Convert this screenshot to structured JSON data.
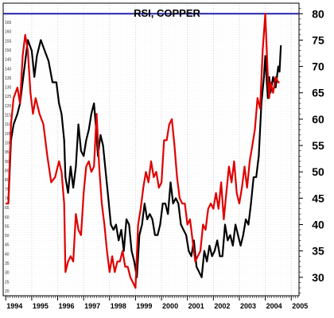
{
  "chart_data": {
    "type": "line",
    "title": "RSI, COPPER",
    "xlabel": "",
    "ylabel": "",
    "xlim": [
      1993.9,
      2005.3
    ],
    "ylim": [
      26.5,
      82
    ],
    "x_ticks": [
      "1994",
      "1995",
      "1996",
      "1997",
      "1998",
      "1999",
      "2000",
      "2001",
      "2002",
      "2003",
      "2004",
      "2005"
    ],
    "y_ticks": [
      30,
      35,
      40,
      45,
      50,
      55,
      60,
      65,
      70,
      75,
      80
    ],
    "left_tick_labels": [
      "20",
      "25",
      "30",
      "35",
      "40",
      "45",
      "50",
      "55",
      "60",
      "65",
      "70",
      "75",
      "80",
      "85",
      "90",
      "95",
      "100",
      "105",
      "110",
      "115",
      "120",
      "125",
      "130",
      "135",
      "140",
      "145",
      "150",
      "155",
      "160",
      "165"
    ],
    "reference_line": {
      "y": 80,
      "color": "#2222aa"
    },
    "grid": true,
    "series": [
      {
        "color": "#000000",
        "x": [
          1994.0,
          1994.1,
          1994.2,
          1994.3,
          1994.45,
          1994.55,
          1994.7,
          1994.85,
          1995.0,
          1995.1,
          1995.2,
          1995.35,
          1995.5,
          1995.65,
          1995.8,
          1995.95,
          1996.05,
          1996.15,
          1996.25,
          1996.3,
          1996.4,
          1996.5,
          1996.6,
          1996.7,
          1996.8,
          1996.9,
          1997.0,
          1997.1,
          1997.2,
          1997.3,
          1997.4,
          1997.5,
          1997.55,
          1997.65,
          1997.75,
          1997.85,
          1997.95,
          1998.05,
          1998.15,
          1998.25,
          1998.35,
          1998.45,
          1998.55,
          1998.65,
          1998.75,
          1998.85,
          1998.95,
          1999.05,
          1999.15,
          1999.25,
          1999.35,
          1999.45,
          1999.55,
          1999.65,
          1999.75,
          1999.85,
          1999.95,
          2000.05,
          2000.15,
          2000.25,
          2000.35,
          2000.45,
          2000.55,
          2000.65,
          2000.75,
          2000.85,
          2000.95,
          2001.05,
          2001.15,
          2001.25,
          2001.35,
          2001.45,
          2001.55,
          2001.65,
          2001.75,
          2001.85,
          2001.95,
          2002.05,
          2002.15,
          2002.25,
          2002.35,
          2002.45,
          2002.55,
          2002.65,
          2002.75,
          2002.85,
          2002.95,
          2003.05,
          2003.15,
          2003.25,
          2003.35,
          2003.45,
          2003.55,
          2003.65,
          2003.75,
          2003.85,
          2003.95,
          2004.0,
          2004.05,
          2004.1,
          2004.15,
          2004.2,
          2004.3,
          2004.4,
          2004.5,
          2004.55,
          2004.6
        ],
        "y": [
          44,
          44,
          56,
          59,
          61,
          63,
          69,
          75,
          73,
          68,
          72,
          75,
          73,
          71,
          67,
          67,
          63,
          61,
          56,
          49,
          46,
          51,
          47,
          51,
          59,
          54,
          53,
          56,
          58,
          61,
          63,
          57,
          53,
          57,
          55,
          50,
          45,
          40,
          39,
          40,
          37,
          39,
          35,
          41,
          40,
          35,
          33,
          30,
          38,
          40,
          44,
          41,
          42,
          41,
          38,
          38,
          40,
          44,
          44,
          42,
          48,
          44,
          45,
          44,
          40,
          39,
          38,
          35,
          34,
          37,
          32,
          31,
          30,
          35,
          33,
          36,
          34,
          35,
          37,
          34,
          34,
          40,
          37,
          38,
          36,
          40,
          38,
          36,
          38,
          41,
          40,
          44,
          49,
          49,
          53,
          63,
          68,
          72,
          68,
          64,
          68,
          65,
          68,
          66,
          70,
          69,
          74
        ]
      },
      {
        "color": "#e00000",
        "x": [
          1994.0,
          1994.1,
          1994.2,
          1994.3,
          1994.45,
          1994.55,
          1994.65,
          1994.75,
          1994.85,
          1994.95,
          1995.05,
          1995.15,
          1995.3,
          1995.45,
          1995.6,
          1995.75,
          1995.9,
          1996.05,
          1996.15,
          1996.25,
          1996.3,
          1996.4,
          1996.5,
          1996.6,
          1996.7,
          1996.8,
          1996.9,
          1997.0,
          1997.1,
          1997.2,
          1997.3,
          1997.4,
          1997.5,
          1997.6,
          1997.7,
          1997.8,
          1997.9,
          1998.0,
          1998.1,
          1998.2,
          1998.3,
          1998.4,
          1998.5,
          1998.6,
          1998.7,
          1998.8,
          1998.9,
          1999.0,
          1999.1,
          1999.2,
          1999.3,
          1999.4,
          1999.5,
          1999.6,
          1999.7,
          1999.8,
          1999.9,
          2000.0,
          2000.1,
          2000.2,
          2000.3,
          2000.4,
          2000.5,
          2000.6,
          2000.7,
          2000.8,
          2000.9,
          2001.0,
          2001.1,
          2001.2,
          2001.3,
          2001.4,
          2001.5,
          2001.6,
          2001.7,
          2001.8,
          2001.9,
          2002.0,
          2002.1,
          2002.2,
          2002.3,
          2002.4,
          2002.5,
          2002.6,
          2002.7,
          2002.8,
          2002.9,
          2003.0,
          2003.1,
          2003.2,
          2003.3,
          2003.4,
          2003.5,
          2003.6,
          2003.7,
          2003.8,
          2003.9,
          2004.0,
          2004.05,
          2004.1,
          2004.15,
          2004.2,
          2004.3,
          2004.4,
          2004.5,
          2004.55
        ],
        "y": [
          44,
          44,
          59,
          64,
          66,
          63,
          72,
          76,
          73,
          65,
          61,
          64,
          61,
          59,
          53,
          48,
          49,
          52,
          50,
          44,
          31,
          33,
          34,
          33,
          42,
          39,
          38,
          46,
          51,
          52,
          50,
          51,
          61,
          51,
          44,
          40,
          35,
          31,
          34,
          31,
          33,
          33,
          35,
          32,
          32,
          30,
          29,
          28,
          40,
          43,
          47,
          50,
          48,
          52,
          49,
          50,
          47,
          48,
          56,
          56,
          59,
          60,
          55,
          49,
          45,
          44,
          44,
          40,
          41,
          37,
          33,
          34,
          35,
          40,
          39,
          43,
          44,
          43,
          46,
          43,
          48,
          41,
          46,
          51,
          48,
          52,
          46,
          44,
          47,
          51,
          47,
          52,
          55,
          58,
          64,
          62,
          73,
          80,
          74,
          68,
          64,
          67,
          65,
          68,
          67,
          67
        ]
      }
    ]
  }
}
